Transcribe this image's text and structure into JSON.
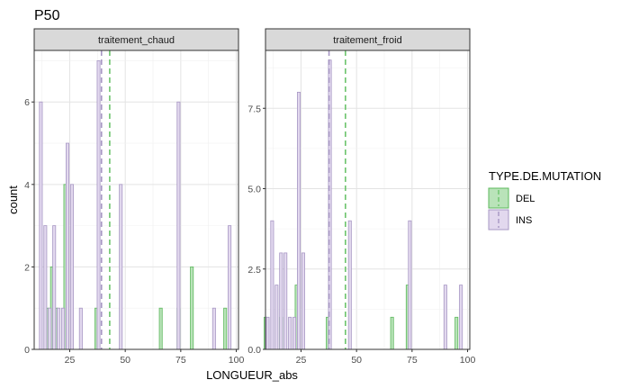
{
  "chart_data": {
    "type": "bar",
    "title": "P50",
    "xlabel": "LONGUEUR_abs",
    "ylabel": "count",
    "legend": {
      "title": "TYPE.DE.MUTATION",
      "position": "right",
      "entries": [
        {
          "name": "DEL",
          "fill": "#b9e3b9",
          "stroke": "#5cb85c",
          "line": "#6cc46c"
        },
        {
          "name": "INS",
          "fill": "#e2d8ee",
          "stroke": "#a797c4",
          "line": "#a797c4"
        }
      ]
    },
    "grid": true,
    "bar_width": 1.3,
    "xlim": [
      9,
      101
    ],
    "x_ticks": [
      25,
      50,
      75,
      100
    ],
    "x_tick_labels": [
      "25",
      "50",
      "75",
      "100"
    ],
    "panels": [
      {
        "strip": "traitement_chaud",
        "ylim": [
          0,
          7.25
        ],
        "y_ticks": [
          0,
          2,
          4,
          6
        ],
        "y_tick_labels": [
          "0",
          "2",
          "4",
          "6"
        ],
        "series": [
          {
            "name": "DEL",
            "x": [
              15,
              17,
              19,
              23,
              37,
              66,
              74,
              80,
              95
            ],
            "values": [
              1,
              2,
              1,
              4,
              1,
              1,
              1,
              2,
              1
            ]
          },
          {
            "name": "INS",
            "x": [
              12,
              14,
              16,
              18,
              20,
              22,
              24,
              26,
              30,
              38,
              48,
              74,
              90,
              97
            ],
            "values": [
              6,
              3,
              1,
              3,
              1,
              1,
              5,
              4,
              1,
              7,
              4,
              6,
              1,
              3
            ]
          }
        ],
        "mean_lines": [
          {
            "name": "INS",
            "x": 39.3
          },
          {
            "name": "DEL",
            "x": 43.0
          }
        ]
      },
      {
        "strip": "traitement_froid",
        "ylim": [
          0,
          9.3
        ],
        "y_ticks": [
          0,
          2.5,
          5,
          7.5
        ],
        "y_tick_labels": [
          "0.0",
          "2.5",
          "5.0",
          "7.5"
        ],
        "series": [
          {
            "name": "DEL",
            "x": [
              9,
              16,
              23,
              37,
              66,
              73,
              95
            ],
            "values": [
              1,
              1,
              2,
              1,
              1,
              2,
              1
            ]
          },
          {
            "name": "INS",
            "x": [
              10,
              12,
              14,
              16,
              18,
              20,
              22,
              24,
              26,
              38,
              47,
              74,
              90,
              97
            ],
            "values": [
              1,
              4,
              2,
              3,
              3,
              1,
              1,
              8,
              3,
              9,
              4,
              4,
              2,
              2
            ]
          }
        ],
        "mean_lines": [
          {
            "name": "INS",
            "x": 37.6
          },
          {
            "name": "DEL",
            "x": 45.0
          }
        ]
      }
    ]
  }
}
